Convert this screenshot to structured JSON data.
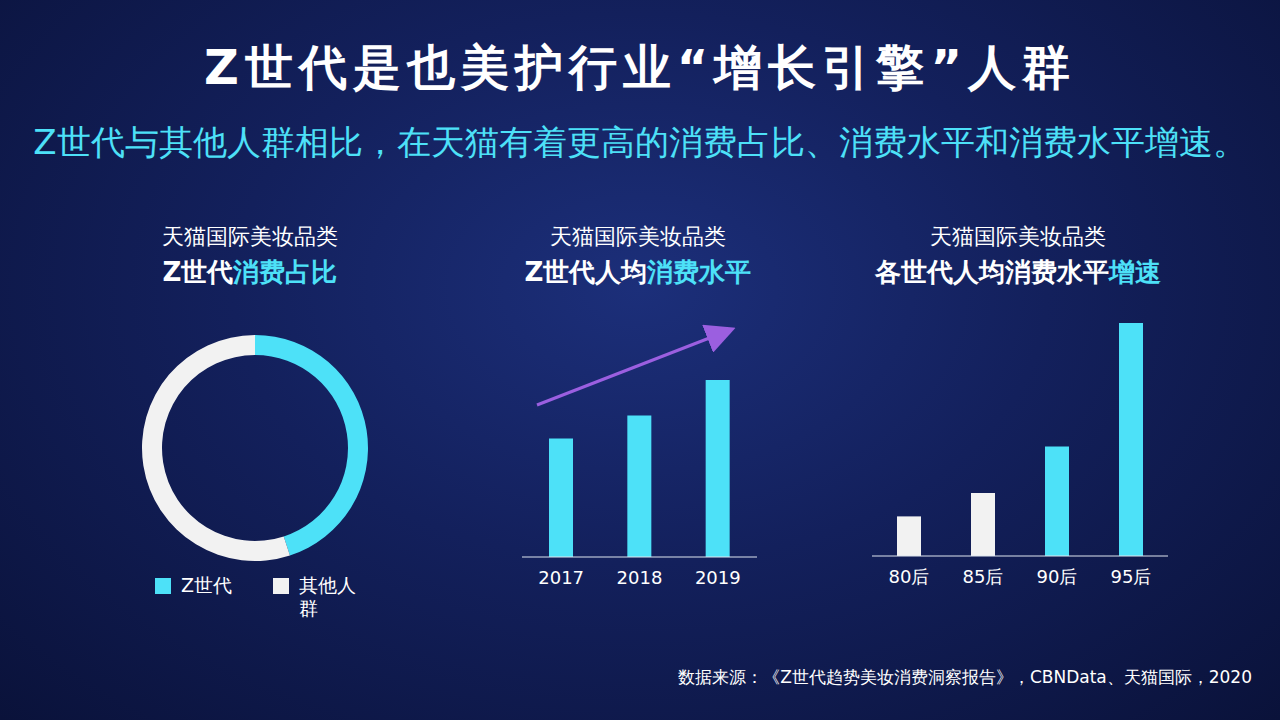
{
  "title": "Z世代是也美护行业“增长引擎”人群",
  "subtitle": "Z世代与其他人群相比，在天猫有着更高的消费占比、消费水平和消费水平增速。",
  "source": "数据来源：《Z世代趋势美妆消费洞察报告》，CBNData、天猫国际，2020",
  "chart_data": [
    {
      "type": "pie",
      "subtitle": "天猫国际美妆品类",
      "title": "Z世代消费占比",
      "categories": [
        "Z世代",
        "其他人群"
      ],
      "values": [
        45,
        55
      ],
      "colors": [
        "#4de1f8",
        "#f2f2f2"
      ],
      "legend": "bottom"
    },
    {
      "type": "bar",
      "subtitle": "天猫国际美妆品类",
      "title": "Z世代人均消费水平",
      "categories": [
        "2017",
        "2018",
        "2019"
      ],
      "values": [
        67,
        80,
        100
      ],
      "color": "#4de1f8",
      "ylim": [
        0,
        100
      ],
      "grid": false,
      "tick_labels": "x"
    },
    {
      "type": "bar",
      "subtitle": "天猫国际美妆品类",
      "title": "各世代人均消费水平增速",
      "categories": [
        "80后",
        "85后",
        "90后",
        "95后"
      ],
      "values": [
        17,
        27,
        47,
        100
      ],
      "colors": [
        "#f2f2f2",
        "#f2f2f2",
        "#4de1f8",
        "#4de1f8"
      ],
      "ylim": [
        0,
        100
      ],
      "grid": false,
      "tick_labels": "x"
    }
  ]
}
